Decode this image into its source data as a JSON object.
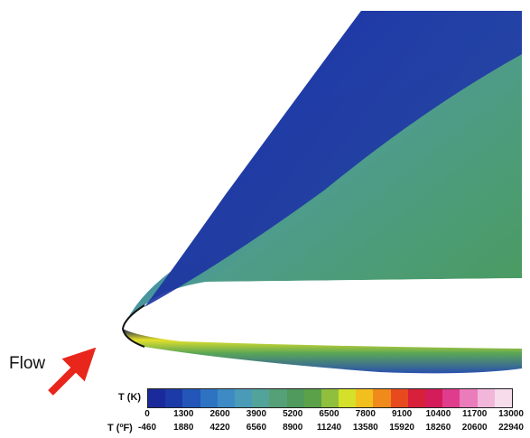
{
  "annotation": {
    "flow_label": "Flow"
  },
  "legend": {
    "k_title": "T (K)",
    "f_title": "T (ºF)",
    "k_ticks": [
      "0",
      "1300",
      "2600",
      "3900",
      "5200",
      "6500",
      "7800",
      "9100",
      "10400",
      "11700",
      "13000"
    ],
    "f_ticks": [
      "-460",
      "1880",
      "4220",
      "6560",
      "8900",
      "11240",
      "13580",
      "15920",
      "18260",
      "20600",
      "22940"
    ],
    "swatches": [
      "#1a2a9a",
      "#1c3aa8",
      "#2356b8",
      "#2e73c2",
      "#3d8bc4",
      "#4a9bb8",
      "#52a39a",
      "#56a078",
      "#4f9a5c",
      "#5aa14a",
      "#8fbf3c",
      "#d5e02a",
      "#f2c01e",
      "#f08a1a",
      "#e84a20",
      "#d8203a",
      "#d41c5a",
      "#e03c8c",
      "#eb7cbc",
      "#f2b6da",
      "#f7dcec"
    ]
  },
  "colors": {
    "arrow": "#e8261c",
    "domain_blue": "#1f33a6",
    "domain_green": "#4f9a6a",
    "hot_layer": "#e6e02a"
  }
}
